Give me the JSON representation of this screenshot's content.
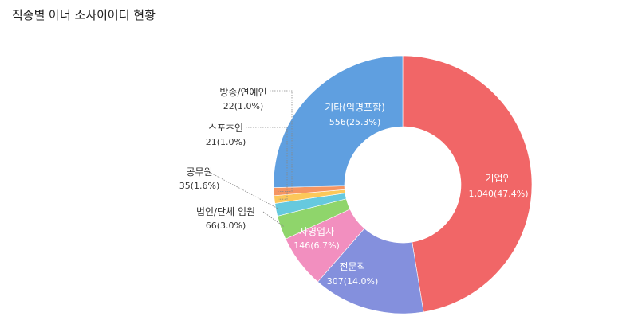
{
  "page": {
    "title": "직종별 아너 소사이어티 현황"
  },
  "chart_data": {
    "type": "pie",
    "donut": true,
    "title": "직종별 아너 소사이어티 현황",
    "slices": [
      {
        "label": "기업인",
        "value": 1040,
        "value_text": "1,040(47.4%)",
        "color": "#f16667"
      },
      {
        "label": "전문직",
        "value": 307,
        "value_text": "307(14.0%)",
        "color": "#8490dd"
      },
      {
        "label": "자영업자",
        "value": 146,
        "value_text": "146(6.7%)",
        "color": "#f28fbf"
      },
      {
        "label": "법인/단체 임원",
        "value": 66,
        "value_text": "66(3.0%)",
        "color": "#8fd56b"
      },
      {
        "label": "공무원",
        "value": 35,
        "value_text": "35(1.6%)",
        "color": "#66c9de"
      },
      {
        "label": "스포츠인",
        "value": 21,
        "value_text": "21(1.0%)",
        "color": "#fcc85a"
      },
      {
        "label": "방송/연예인",
        "value": 22,
        "value_text": "22(1.0%)",
        "color": "#f59562"
      },
      {
        "label": "기타(익명포함)",
        "value": 556,
        "value_text": "556(25.3%)",
        "color": "#5f9fe0"
      }
    ]
  }
}
